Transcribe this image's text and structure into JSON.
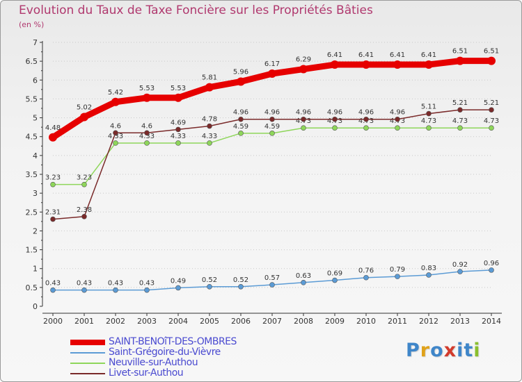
{
  "header": {
    "title": "Evolution du Taux de Taxe Foncière sur les Propriétés Bâties",
    "unit": "(en %)"
  },
  "logo": {
    "text": "Proxiti",
    "letters": [
      {
        "ch": "P",
        "color": "#3f86c9"
      },
      {
        "ch": "r",
        "color": "#e0a21a"
      },
      {
        "ch": "o",
        "color": "#3f86c9"
      },
      {
        "ch": "x",
        "color": "#d23b2c"
      },
      {
        "ch": "i",
        "color": "#3f86c9"
      },
      {
        "ch": "t",
        "color": "#3f86c9"
      },
      {
        "ch": "i",
        "color": "#8abf2e"
      }
    ]
  },
  "chart_data": {
    "type": "line",
    "title": "Evolution du Taux de Taxe Foncière sur les Propriétés Bâties",
    "ylabel": "(en %)",
    "xlabel": "",
    "x": [
      "2000",
      "2001",
      "2002",
      "2003",
      "2004",
      "2005",
      "2006",
      "2007",
      "2008",
      "2009",
      "2010",
      "2011",
      "2012",
      "2013",
      "2014"
    ],
    "ylim": [
      0,
      7
    ],
    "yticks": [
      "0",
      "0.5",
      "1",
      "1.5",
      "2",
      "2.5",
      "3",
      "3.5",
      "4",
      "4.5",
      "5",
      "5.5",
      "6",
      "6.5",
      "7"
    ],
    "legend_position": "bottom-left",
    "series": [
      {
        "name": "SAINT-BENOîT-DES-OMBRES",
        "color": "#e60000",
        "emphasis": true,
        "values": [
          4.48,
          5.02,
          5.42,
          5.53,
          5.53,
          5.81,
          5.96,
          6.17,
          6.29,
          6.41,
          6.41,
          6.41,
          6.41,
          6.51,
          6.51
        ],
        "labels": [
          "4.48",
          "5.02",
          "5.42",
          "5.53",
          "5.53",
          "5.81",
          "5.96",
          "6.17",
          "6.29",
          "6.41",
          "6.41",
          "6.41",
          "6.41",
          "6.51",
          "6.51"
        ]
      },
      {
        "name": "Saint-Grégoire-du-Vièvre",
        "color": "#5b9bd5",
        "emphasis": false,
        "values": [
          0.43,
          0.43,
          0.43,
          0.43,
          0.49,
          0.52,
          0.52,
          0.57,
          0.63,
          0.69,
          0.76,
          0.79,
          0.83,
          0.92,
          0.96
        ],
        "labels": [
          "0.43",
          "0.43",
          "0.43",
          "0.43",
          "0.49",
          "0.52",
          "0.52",
          "0.57",
          "0.63",
          "0.69",
          "0.76",
          "0.79",
          "0.83",
          "0.92",
          "0.96"
        ]
      },
      {
        "name": "Neuville-sur-Authou",
        "color": "#8ed65a",
        "emphasis": false,
        "values": [
          3.23,
          3.23,
          4.33,
          4.33,
          4.33,
          4.33,
          4.59,
          4.59,
          4.73,
          4.73,
          4.73,
          4.73,
          4.73,
          4.73,
          4.73
        ],
        "labels": [
          "3.23",
          "3.23",
          "4.33",
          "4.33",
          "4.33",
          "4.33",
          "4.59",
          "4.59",
          "4.73",
          "4.73",
          "4.73",
          "4.73",
          "4.73",
          "4.73",
          "4.73"
        ]
      },
      {
        "name": "Livet-sur-Authou",
        "color": "#7a2a2a",
        "emphasis": false,
        "values": [
          2.31,
          2.38,
          4.6,
          4.6,
          4.69,
          4.78,
          4.96,
          4.96,
          4.96,
          4.96,
          4.96,
          4.96,
          5.11,
          5.21,
          5.21
        ],
        "labels": [
          "2.31",
          "2.38",
          "4.6",
          "4.6",
          "4.69",
          "4.78",
          "4.96",
          "4.96",
          "4.96",
          "4.96",
          "4.96",
          "4.96",
          "5.11",
          "5.21",
          "5.21"
        ]
      }
    ]
  }
}
